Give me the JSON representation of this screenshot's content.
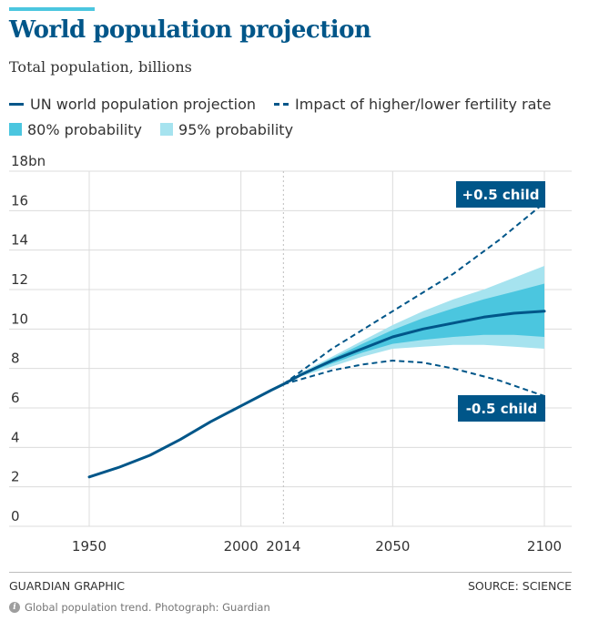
{
  "header": {
    "title": "World population projection",
    "subtitle": "Total population, billions"
  },
  "legend": {
    "un_line": "UN world population projection",
    "fertility": "Impact of higher/lower fertility rate",
    "p80": "80% probability",
    "p95": "95% probability"
  },
  "footer": {
    "left": "GUARDIAN GRAPHIC",
    "right": "SOURCE: SCIENCE",
    "caption": "Global population trend. Photograph: Guardian"
  },
  "colors": {
    "line": "#005689",
    "band80": "#4bc6df",
    "band95": "#a6e3ef",
    "grid": "#dcdcdc",
    "accent_bar": "#4bc6df"
  },
  "icons": {
    "info": "info-icon"
  },
  "chart_data": {
    "type": "line",
    "title": "World population projection",
    "subtitle": "Total population, billions",
    "xlabel": "",
    "ylabel": "",
    "xlim": [
      1950,
      2100
    ],
    "ylim": [
      0,
      18
    ],
    "x_ticks": [
      1950,
      2000,
      2014,
      2050,
      2100
    ],
    "x_tick_labels": [
      "1950",
      "2000",
      "2014",
      "2050",
      "2100"
    ],
    "y_ticks": [
      0,
      2,
      4,
      6,
      8,
      10,
      12,
      14,
      16,
      18
    ],
    "y_tick_labels": [
      "0",
      "2",
      "4",
      "6",
      "8",
      "10",
      "12",
      "14",
      "16",
      "18bn"
    ],
    "grid": true,
    "legend_position": "top",
    "series": [
      {
        "name": "UN world population projection",
        "style": "solid",
        "x": [
          1950,
          1960,
          1970,
          1980,
          1990,
          2000,
          2010,
          2014,
          2020,
          2030,
          2040,
          2050,
          2060,
          2070,
          2080,
          2090,
          2100
        ],
        "y": [
          2.5,
          3.0,
          3.6,
          4.4,
          5.3,
          6.1,
          6.9,
          7.2,
          7.7,
          8.4,
          9.0,
          9.6,
          10.0,
          10.3,
          10.6,
          10.8,
          10.9
        ]
      },
      {
        "label": "+0.5 child",
        "style": "dashed",
        "x": [
          2014,
          2030,
          2050,
          2070,
          2085,
          2100
        ],
        "y": [
          7.2,
          9.0,
          10.9,
          12.8,
          14.5,
          16.4
        ]
      },
      {
        "label": "-0.5 child",
        "style": "dashed",
        "x": [
          2014,
          2030,
          2040,
          2050,
          2060,
          2070,
          2085,
          2100
        ],
        "y": [
          7.2,
          7.9,
          8.2,
          8.4,
          8.3,
          8.0,
          7.4,
          6.6
        ]
      }
    ],
    "bands": [
      {
        "name": "95% probability",
        "x": [
          2014,
          2020,
          2030,
          2040,
          2050,
          2060,
          2070,
          2080,
          2090,
          2100
        ],
        "lower": [
          7.2,
          7.6,
          8.1,
          8.6,
          9.0,
          9.1,
          9.2,
          9.2,
          9.1,
          9.0
        ],
        "upper": [
          7.2,
          7.8,
          8.6,
          9.4,
          10.2,
          10.9,
          11.5,
          12.0,
          12.6,
          13.2
        ]
      },
      {
        "name": "80% probability",
        "x": [
          2014,
          2020,
          2030,
          2040,
          2050,
          2060,
          2070,
          2080,
          2090,
          2100
        ],
        "lower": [
          7.2,
          7.65,
          8.25,
          8.8,
          9.25,
          9.45,
          9.6,
          9.7,
          9.7,
          9.6
        ],
        "upper": [
          7.2,
          7.75,
          8.5,
          9.25,
          9.95,
          10.55,
          11.05,
          11.5,
          11.9,
          12.3
        ]
      }
    ],
    "annotations": [
      {
        "text": "+0.5 child",
        "near_x": 2100,
        "near_y": 16.4,
        "position": "above-left"
      },
      {
        "text": "-0.5 child",
        "near_x": 2100,
        "near_y": 6.6,
        "position": "below-left"
      }
    ],
    "reference_line": {
      "x": 2014,
      "style": "dotted"
    }
  }
}
